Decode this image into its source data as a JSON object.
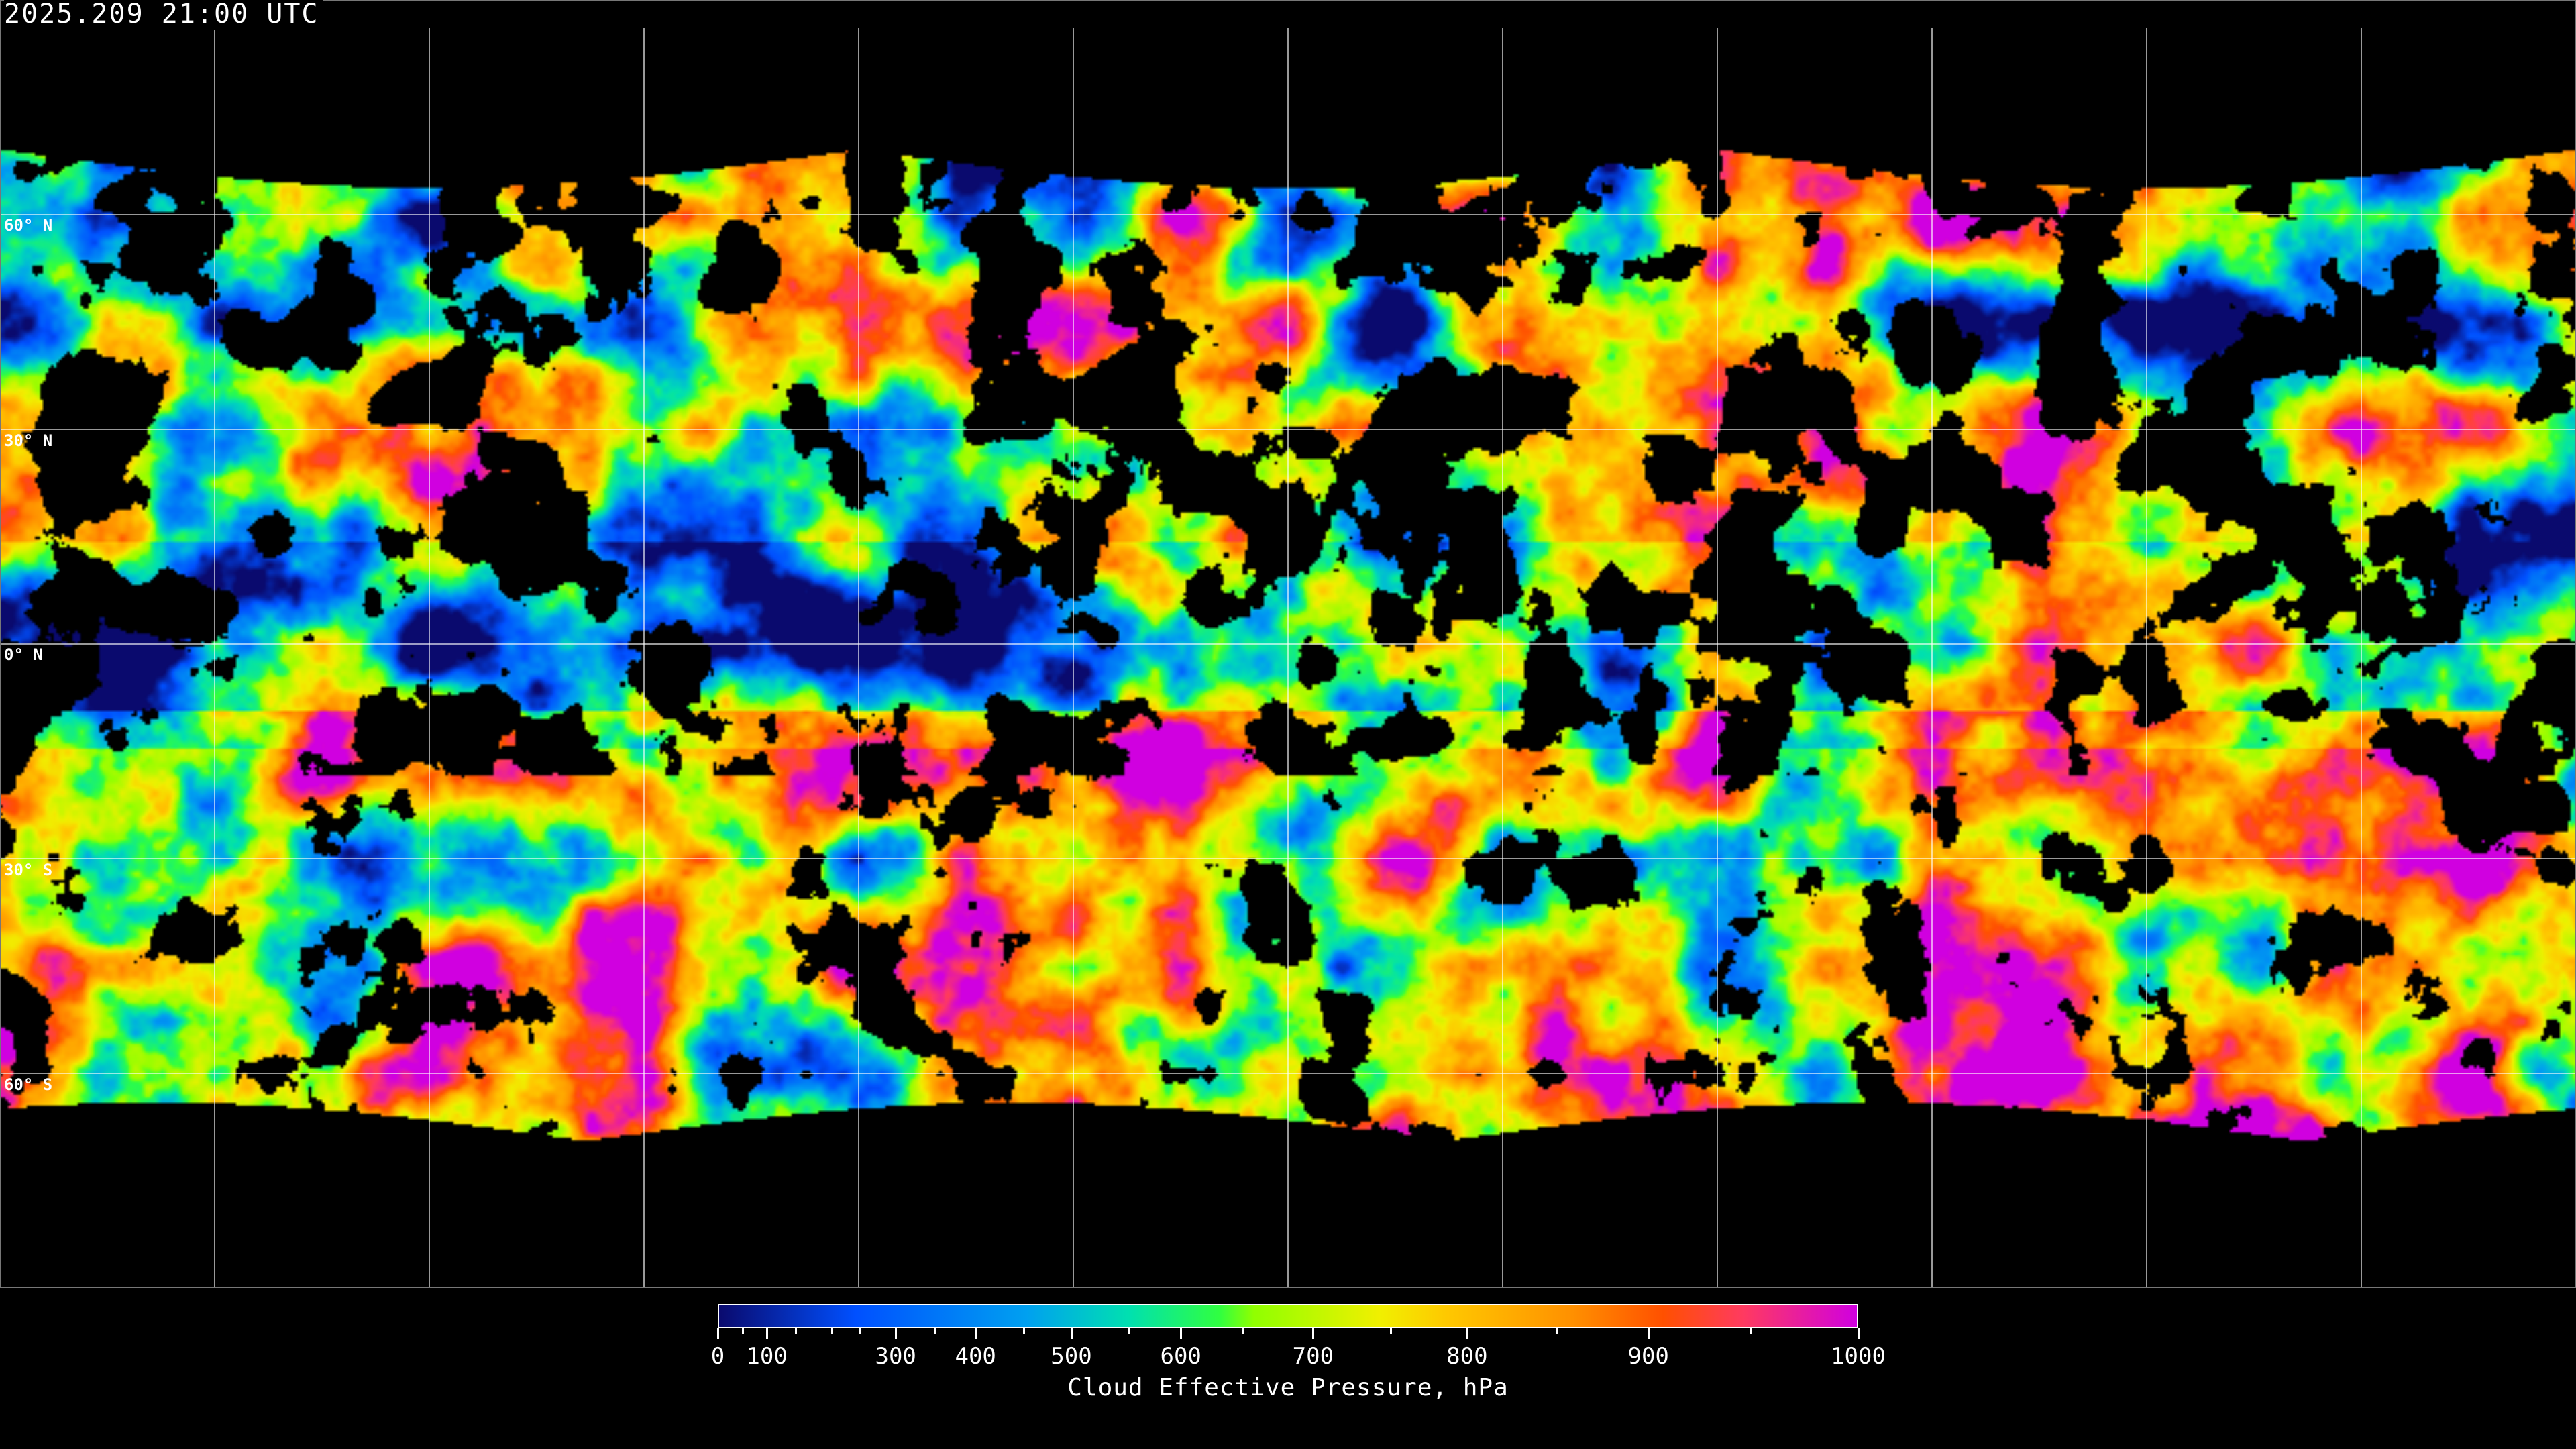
{
  "title": "2025.209 21:00 UTC",
  "map": {
    "projection": "equirectangular",
    "graticule_spacing_deg": 30,
    "lat_labels": [
      "60° N",
      "30° N",
      "0° N",
      "30° S",
      "60° S"
    ],
    "no_data_color": "#000000",
    "coastline_color": "#ffffff"
  },
  "colorbar": {
    "label": "Cloud Effective Pressure, hPa",
    "min": 0,
    "max": 1000,
    "tick_labels": [
      "0",
      "100",
      "300",
      "400",
      "500",
      "600",
      "700",
      "800",
      "900",
      "1000"
    ],
    "colors": [
      "#0a0a6e",
      "#0050ff",
      "#00a0f0",
      "#00e0b0",
      "#30ff40",
      "#90ff00",
      "#f0f000",
      "#ffc800",
      "#ff9000",
      "#ff5000",
      "#ff3a60",
      "#d000e0"
    ]
  }
}
